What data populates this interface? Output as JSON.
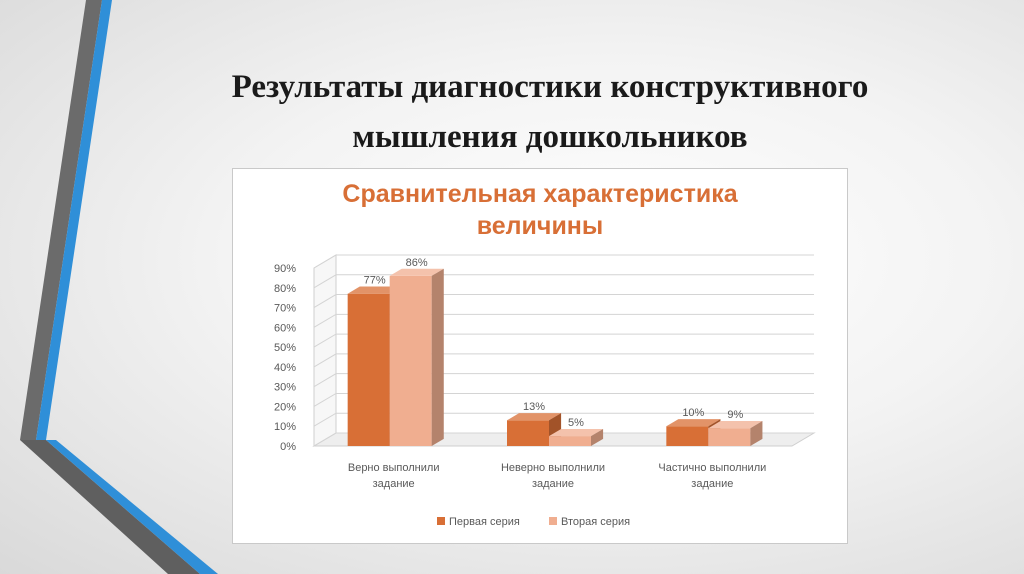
{
  "slide": {
    "title_line1": "Результаты диагностики конструктивного",
    "title_line2": "мышления дошкольников"
  },
  "colors": {
    "series1": "#d86f36",
    "series2": "#f0ae90",
    "title": "#d86f36"
  },
  "chart_data": {
    "type": "bar",
    "title_line1": "Сравнительная характеристика",
    "title_line2": "величины",
    "categories": [
      [
        "Верно выполнили",
        "задание"
      ],
      [
        "Неверно выполнили",
        "задание"
      ],
      [
        "Частично выполнили",
        "задание"
      ]
    ],
    "series": [
      {
        "name": "Первая серия",
        "values": [
          77,
          13,
          10
        ],
        "labels": [
          "77%",
          "13%",
          "10%"
        ]
      },
      {
        "name": "Вторая серия",
        "values": [
          86,
          5,
          9
        ],
        "labels": [
          "86%",
          "5%",
          "9%"
        ]
      }
    ],
    "ylim": [
      0,
      90
    ],
    "yticks": [
      "0%",
      "10%",
      "20%",
      "30%",
      "40%",
      "50%",
      "60%",
      "70%",
      "80%",
      "90%"
    ],
    "grid": true,
    "legend": "bottom",
    "three_d": true
  }
}
